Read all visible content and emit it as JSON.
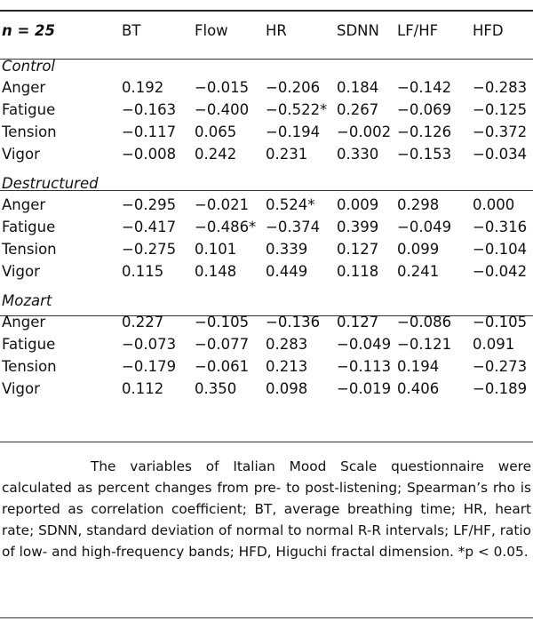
{
  "table": {
    "n_label": "n = 25",
    "columns": [
      "BT",
      "Flow",
      "HR",
      "SDNN",
      "LF/HF",
      "HFD"
    ],
    "groups": [
      {
        "name": "Control",
        "rows": [
          {
            "label": "Anger",
            "values": [
              "0.192",
              "−0.015",
              "−0.206",
              "0.184",
              "−0.142",
              "−0.283"
            ]
          },
          {
            "label": "Fatigue",
            "values": [
              "−0.163",
              "−0.400",
              "−0.522*",
              "0.267",
              "−0.069",
              "−0.125"
            ]
          },
          {
            "label": "Tension",
            "values": [
              "−0.117",
              "0.065",
              "−0.194",
              "−0.002",
              "−0.126",
              "−0.372"
            ]
          },
          {
            "label": "Vigor",
            "values": [
              "−0.008",
              "0.242",
              "0.231",
              "0.330",
              "−0.153",
              "−0.034"
            ]
          }
        ]
      },
      {
        "name": "Destructured",
        "rows": [
          {
            "label": "Anger",
            "values": [
              "−0.295",
              "−0.021",
              "0.524*",
              "0.009",
              "0.298",
              "0.000"
            ]
          },
          {
            "label": "Fatigue",
            "values": [
              "−0.417",
              "−0.486*",
              "−0.374",
              "0.399",
              "−0.049",
              "−0.316"
            ]
          },
          {
            "label": "Tension",
            "values": [
              "−0.275",
              "0.101",
              "0.339",
              "0.127",
              "0.099",
              "−0.104"
            ]
          },
          {
            "label": "Vigor",
            "values": [
              "0.115",
              "0.148",
              "0.449",
              "0.118",
              "0.241",
              "−0.042"
            ]
          }
        ]
      },
      {
        "name": "Mozart",
        "rows": [
          {
            "label": "Anger",
            "values": [
              "0.227",
              "−0.105",
              "−0.136",
              "0.127",
              "−0.086",
              "−0.105"
            ]
          },
          {
            "label": "Fatigue",
            "values": [
              "−0.073",
              "−0.077",
              "0.283",
              "−0.049",
              "−0.121",
              "0.091"
            ]
          },
          {
            "label": "Tension",
            "values": [
              "−0.179",
              "−0.061",
              "0.213",
              "−0.113",
              "0.194",
              "−0.273"
            ]
          },
          {
            "label": "Vigor",
            "values": [
              "0.112",
              "0.350",
              "0.098",
              "−0.019",
              "0.406",
              "−0.189"
            ]
          }
        ]
      }
    ]
  },
  "footnote": "The variables of Italian Mood Scale questionnaire were calculated as percent changes from pre- to post-listening; Spearman’s rho is reported as correlation coefficient; BT, average breathing time; HR, heart rate; SDNN, standard deviation of normal to normal R-R intervals; LF/HF, ratio of low- and high-frequency bands; HFD, Higuchi fractal dimension. *p < 0.05."
}
